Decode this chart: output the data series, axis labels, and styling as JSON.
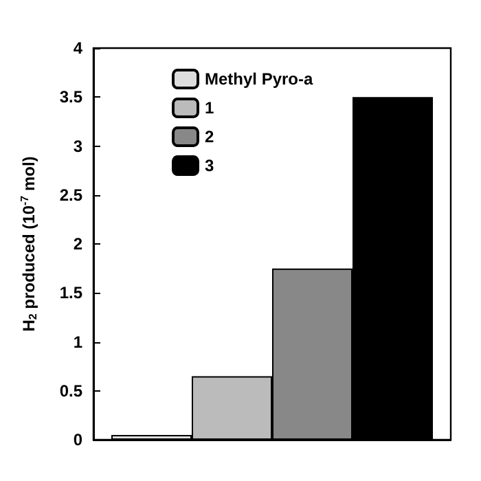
{
  "chart_data": {
    "type": "bar",
    "ylabel": "H$_{2}$ produced (10$^{-7}$ mol)",
    "categories": [
      null
    ],
    "series": [
      {
        "name": "Methyl Pyro-a",
        "color": "#dddddd",
        "values": [
          0.05
        ]
      },
      {
        "name": "1",
        "color": "#bbbbbb",
        "values": [
          0.65
        ]
      },
      {
        "name": "2",
        "color": "#888888",
        "values": [
          1.75
        ]
      },
      {
        "name": "3",
        "color": "#000000",
        "values": [
          3.5
        ]
      }
    ],
    "ylim": [
      0,
      4
    ],
    "yticks": [
      0,
      0.5,
      1,
      1.5,
      2,
      2.5,
      3,
      3.5,
      4
    ],
    "grid": false,
    "legend": "top left"
  }
}
